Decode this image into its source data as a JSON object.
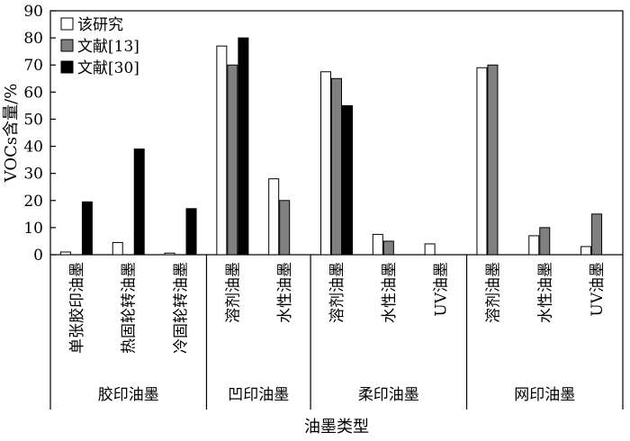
{
  "chart_data": {
    "type": "bar",
    "title": "",
    "xlabel": "油墨类型",
    "ylabel": "VOCs含量/%",
    "ylim": [
      0,
      90
    ],
    "yticks": [
      0,
      10,
      20,
      30,
      40,
      50,
      60,
      70,
      80,
      90
    ],
    "grid": false,
    "legend_position": "top-left",
    "series": [
      {
        "name": "该研究",
        "color": "#ffffff",
        "values": [
          1,
          4.5,
          0.6,
          77,
          28,
          67.5,
          7.5,
          4,
          69,
          7,
          3
        ]
      },
      {
        "name": "文献[13]",
        "color": "#808080",
        "values": [
          null,
          null,
          null,
          70,
          20,
          65,
          5,
          null,
          70,
          10,
          15
        ]
      },
      {
        "name": "文献[30]",
        "color": "#000000",
        "values": [
          19.5,
          39,
          17,
          80,
          null,
          55,
          null,
          null,
          null,
          null,
          null
        ]
      }
    ],
    "categories": [
      "单张胶印油墨",
      "热固轮转油墨",
      "冷固轮转油墨",
      "溶剂油墨",
      "水性油墨",
      "溶剂油墨",
      "水性油墨",
      "UV油墨",
      "溶剂油墨",
      "水性油墨",
      "UV油墨"
    ],
    "groups": [
      {
        "label": "胶印油墨",
        "count": 3
      },
      {
        "label": "凹印油墨",
        "count": 2
      },
      {
        "label": "柔印油墨",
        "count": 3
      },
      {
        "label": "网印油墨",
        "count": 3
      }
    ]
  }
}
